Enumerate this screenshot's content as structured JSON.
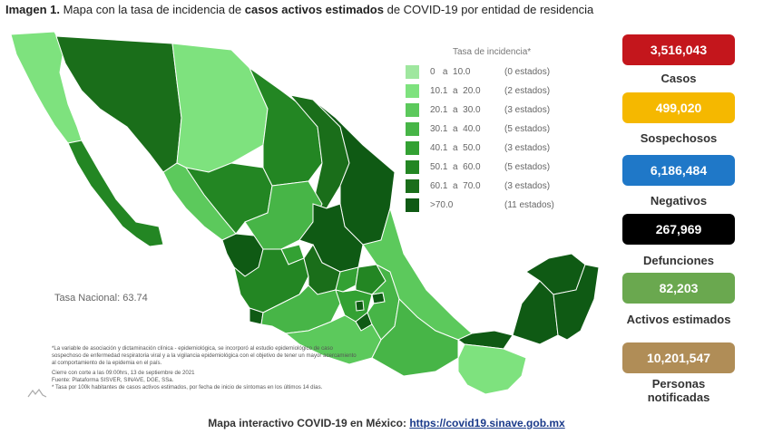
{
  "header": {
    "prefix": "Imagen 1.",
    "text1": " Mapa con la tasa de incidencia de ",
    "bold": "casos activos estimados",
    "text2": " de COVID-19 por entidad de residencia"
  },
  "legend": {
    "title": "Tasa de incidencia*",
    "items": [
      {
        "range": "0   a  10.0",
        "count": "(0 estados)",
        "color": "#9fe79f"
      },
      {
        "range": "10.1  a  20.0",
        "count": "(2 estados)",
        "color": "#7ee27e"
      },
      {
        "range": "20.1  a  30.0",
        "count": "(3 estados)",
        "color": "#5cc95c"
      },
      {
        "range": "30.1  a  40.0",
        "count": "(5 estados)",
        "color": "#47b547"
      },
      {
        "range": "40.1  a  50.0",
        "count": "(3 estados)",
        "color": "#33a133"
      },
      {
        "range": "50.1  a  60.0",
        "count": "(5 estados)",
        "color": "#238623"
      },
      {
        "range": "60.1  a  70.0",
        "count": "(3 estados)",
        "color": "#1a6e1a"
      },
      {
        "range": ">70.0",
        "count": "(11 estados)",
        "color": "#0f5a14"
      }
    ]
  },
  "tasa_nacional": "Tasa Nacional: 63.74",
  "notes": {
    "note1": "*La variable de asociación y dictaminación clínica - epidemiológica, se incorporó al estudio epidemiológico de caso sospechoso de enfermedad respiratoria viral y a la vigilancia epidemiológica con el objetivo de tener un mayor acercamiento al comportamiento de la epidemia en el país.",
    "note2": "Cierre con corte a las 09:00hrs, 13 de septiembre de 2021",
    "note3": "Fuente: Plataforma SISVER, SINAVE, DGE, SSa.",
    "note4": "* Tasa por 100k habitantes de casos activos estimados, por fecha de inicio de síntomas en los últimos 14 días."
  },
  "stats": [
    {
      "value": "3,516,043",
      "label": "Casos",
      "color": "#c4161c"
    },
    {
      "value": "499,020",
      "label": "Sospechosos",
      "color": "#f5b800"
    },
    {
      "value": "6,186,484",
      "label": "Negativos",
      "color": "#1f78c8"
    },
    {
      "value": "267,969",
      "label": "Defunciones",
      "color": "#000000"
    },
    {
      "value": "82,203",
      "label": "Activos estimados",
      "color": "#6aa84f"
    },
    {
      "value": "10,201,547",
      "label": "Personas notificadas",
      "color": "#b08d57"
    }
  ],
  "footer": {
    "text": "Mapa interactivo COVID-19 en México: ",
    "link": "https://covid19.sinave.gob.mx"
  }
}
